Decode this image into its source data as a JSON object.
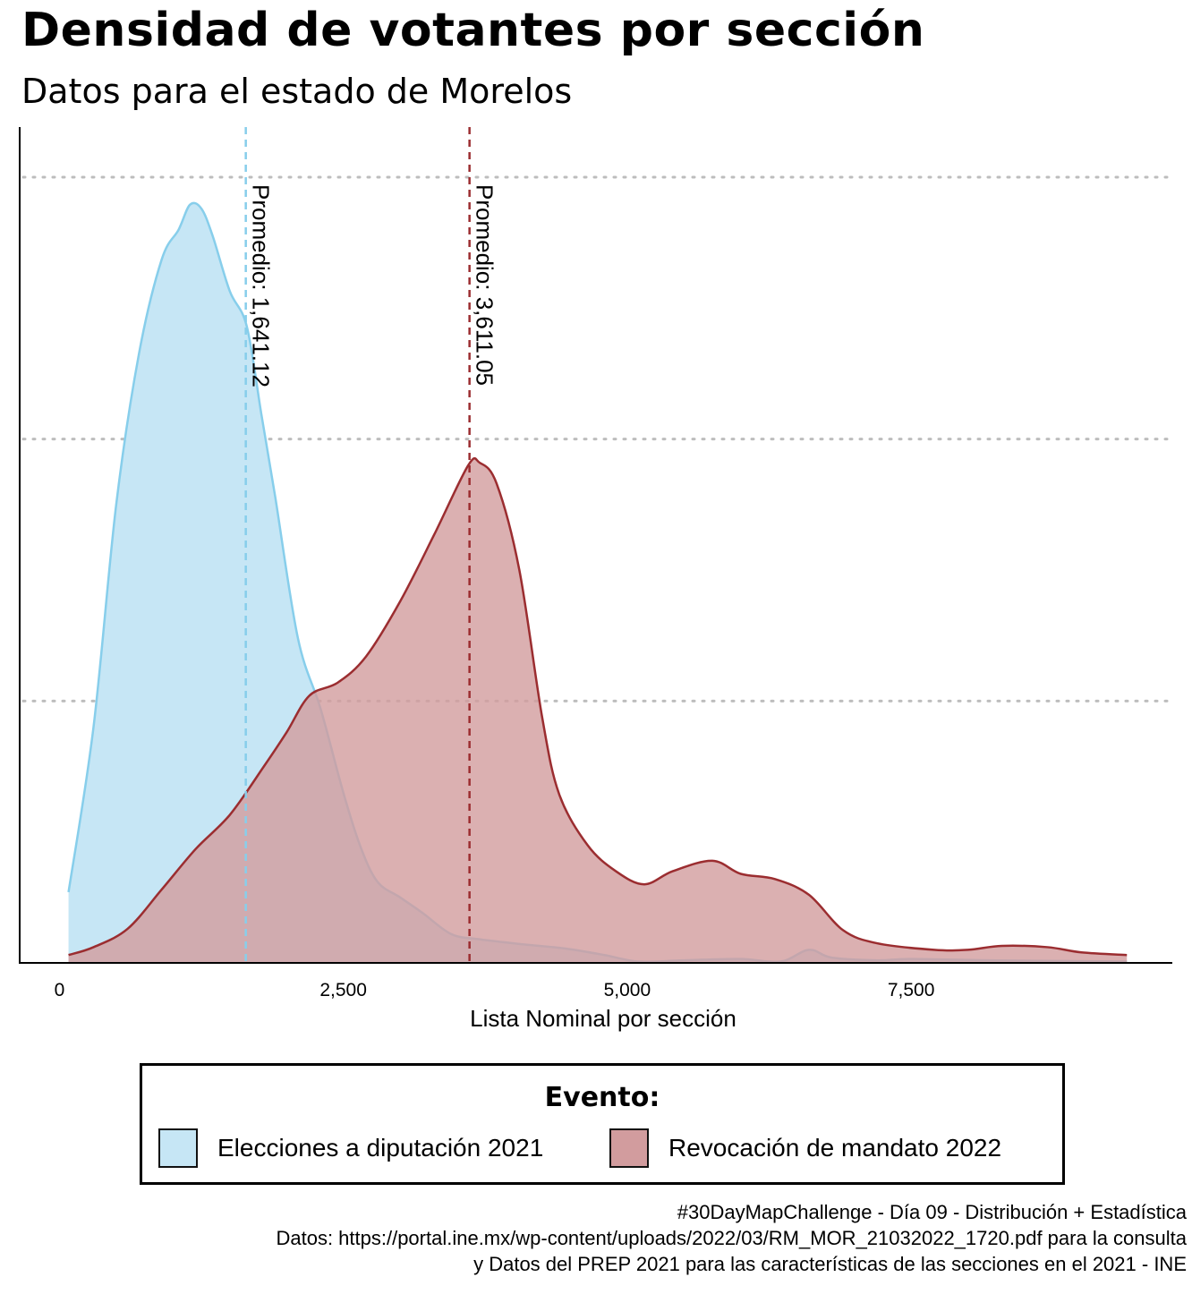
{
  "title": "Densidad de votantes por sección",
  "subtitle": "Datos para el estado de Morelos",
  "chart_data": {
    "type": "area",
    "xlabel": "Lista Nominal por sección",
    "ylabel": "",
    "xlim": [
      -350,
      9800
    ],
    "ylim": [
      0,
      0.0006
    ],
    "x_ticks": [
      0,
      2500,
      5000,
      7500
    ],
    "x_tick_labels": [
      "0",
      "2,500",
      "5,000",
      "7,500"
    ],
    "y_gridlines": [
      0.0002,
      0.0004,
      0.0006
    ],
    "grid": "horizontal dotted",
    "legend_position": "bottom",
    "series": [
      {
        "name": "Elecciones a diputación 2021",
        "color": "#87CEEB",
        "fill": "#C6E6F5",
        "points": [
          [
            80,
            5.4e-05
          ],
          [
            300,
            0.00018
          ],
          [
            500,
            0.00035
          ],
          [
            700,
            0.000465
          ],
          [
            900,
            0.000537
          ],
          [
            1050,
            0.00056
          ],
          [
            1150,
            0.000579
          ],
          [
            1250,
            0.000576
          ],
          [
            1350,
            0.000555
          ],
          [
            1500,
            0.000513
          ],
          [
            1650,
            0.000486
          ],
          [
            1780,
            0.000418
          ],
          [
            1900,
            0.000356
          ],
          [
            2100,
            0.000248
          ],
          [
            2300,
            0.000194
          ],
          [
            2500,
            0.00013
          ],
          [
            2650,
            8.9e-05
          ],
          [
            2800,
            6.2e-05
          ],
          [
            3000,
            5e-05
          ],
          [
            3200,
            3.8e-05
          ],
          [
            3450,
            2.2e-05
          ],
          [
            3700,
            1.8e-05
          ],
          [
            4100,
            1.4e-05
          ],
          [
            4450,
            1.1e-05
          ],
          [
            4800,
            6e-06
          ],
          [
            5100,
            1e-06
          ],
          [
            5500,
            2e-06
          ],
          [
            6000,
            3e-06
          ],
          [
            6350,
            1e-06
          ],
          [
            6600,
            1e-05
          ],
          [
            6800,
            4e-06
          ],
          [
            7200,
            2e-06
          ],
          [
            7500,
            3e-06
          ],
          [
            8200,
            2e-06
          ],
          [
            9400,
            1e-06
          ]
        ]
      },
      {
        "name": "Revocación de mandato 2022",
        "color": "#9B2D30",
        "fill": "#D29C9E",
        "points": [
          [
            80,
            6e-06
          ],
          [
            300,
            1.2e-05
          ],
          [
            600,
            2.6e-05
          ],
          [
            900,
            5.6e-05
          ],
          [
            1200,
            8.7e-05
          ],
          [
            1500,
            0.000113
          ],
          [
            1800,
            0.00015
          ],
          [
            2000,
            0.000176
          ],
          [
            2200,
            0.000204
          ],
          [
            2450,
            0.000214
          ],
          [
            2700,
            0.000234
          ],
          [
            3000,
            0.000276
          ],
          [
            3300,
            0.000327
          ],
          [
            3600,
            0.00038
          ],
          [
            3700,
            0.000382
          ],
          [
            3850,
            0.000366
          ],
          [
            4050,
            0.0003
          ],
          [
            4250,
            0.000188
          ],
          [
            4400,
            0.000129
          ],
          [
            4650,
            9e-05
          ],
          [
            4900,
            7e-05
          ],
          [
            5150,
            6e-05
          ],
          [
            5400,
            7e-05
          ],
          [
            5750,
            7.8e-05
          ],
          [
            6000,
            6.8e-05
          ],
          [
            6300,
            6.4e-05
          ],
          [
            6600,
            5.2e-05
          ],
          [
            6900,
            2.5e-05
          ],
          [
            7200,
            1.5e-05
          ],
          [
            7700,
            1e-05
          ],
          [
            8000,
            1e-05
          ],
          [
            8300,
            1.3e-05
          ],
          [
            8700,
            1.2e-05
          ],
          [
            9000,
            8e-06
          ],
          [
            9400,
            6e-06
          ]
        ]
      }
    ],
    "annotations": [
      {
        "x": 1641.12,
        "label": "Promedio: 1,641.12",
        "color": "#87CEEB"
      },
      {
        "x": 3611.05,
        "label": "Promedio: 3,611.05",
        "color": "#9B2D30"
      }
    ]
  },
  "legend": {
    "title": "Evento:",
    "items": [
      {
        "label": "Elecciones a diputación 2021",
        "color": "#C6E6F5"
      },
      {
        "label": "Revocación de mandato 2022",
        "color": "#D29C9E"
      }
    ]
  },
  "caption": {
    "line1": "#30DayMapChallenge - Día 09 - Distribución + Estadística",
    "line2": "Datos: https://portal.ine.mx/wp-content/uploads/2022/03/RM_MOR_21032022_1720.pdf para la consulta",
    "line3": "y Datos del PREP 2021 para las características de las secciones en el 2021 - INE"
  }
}
